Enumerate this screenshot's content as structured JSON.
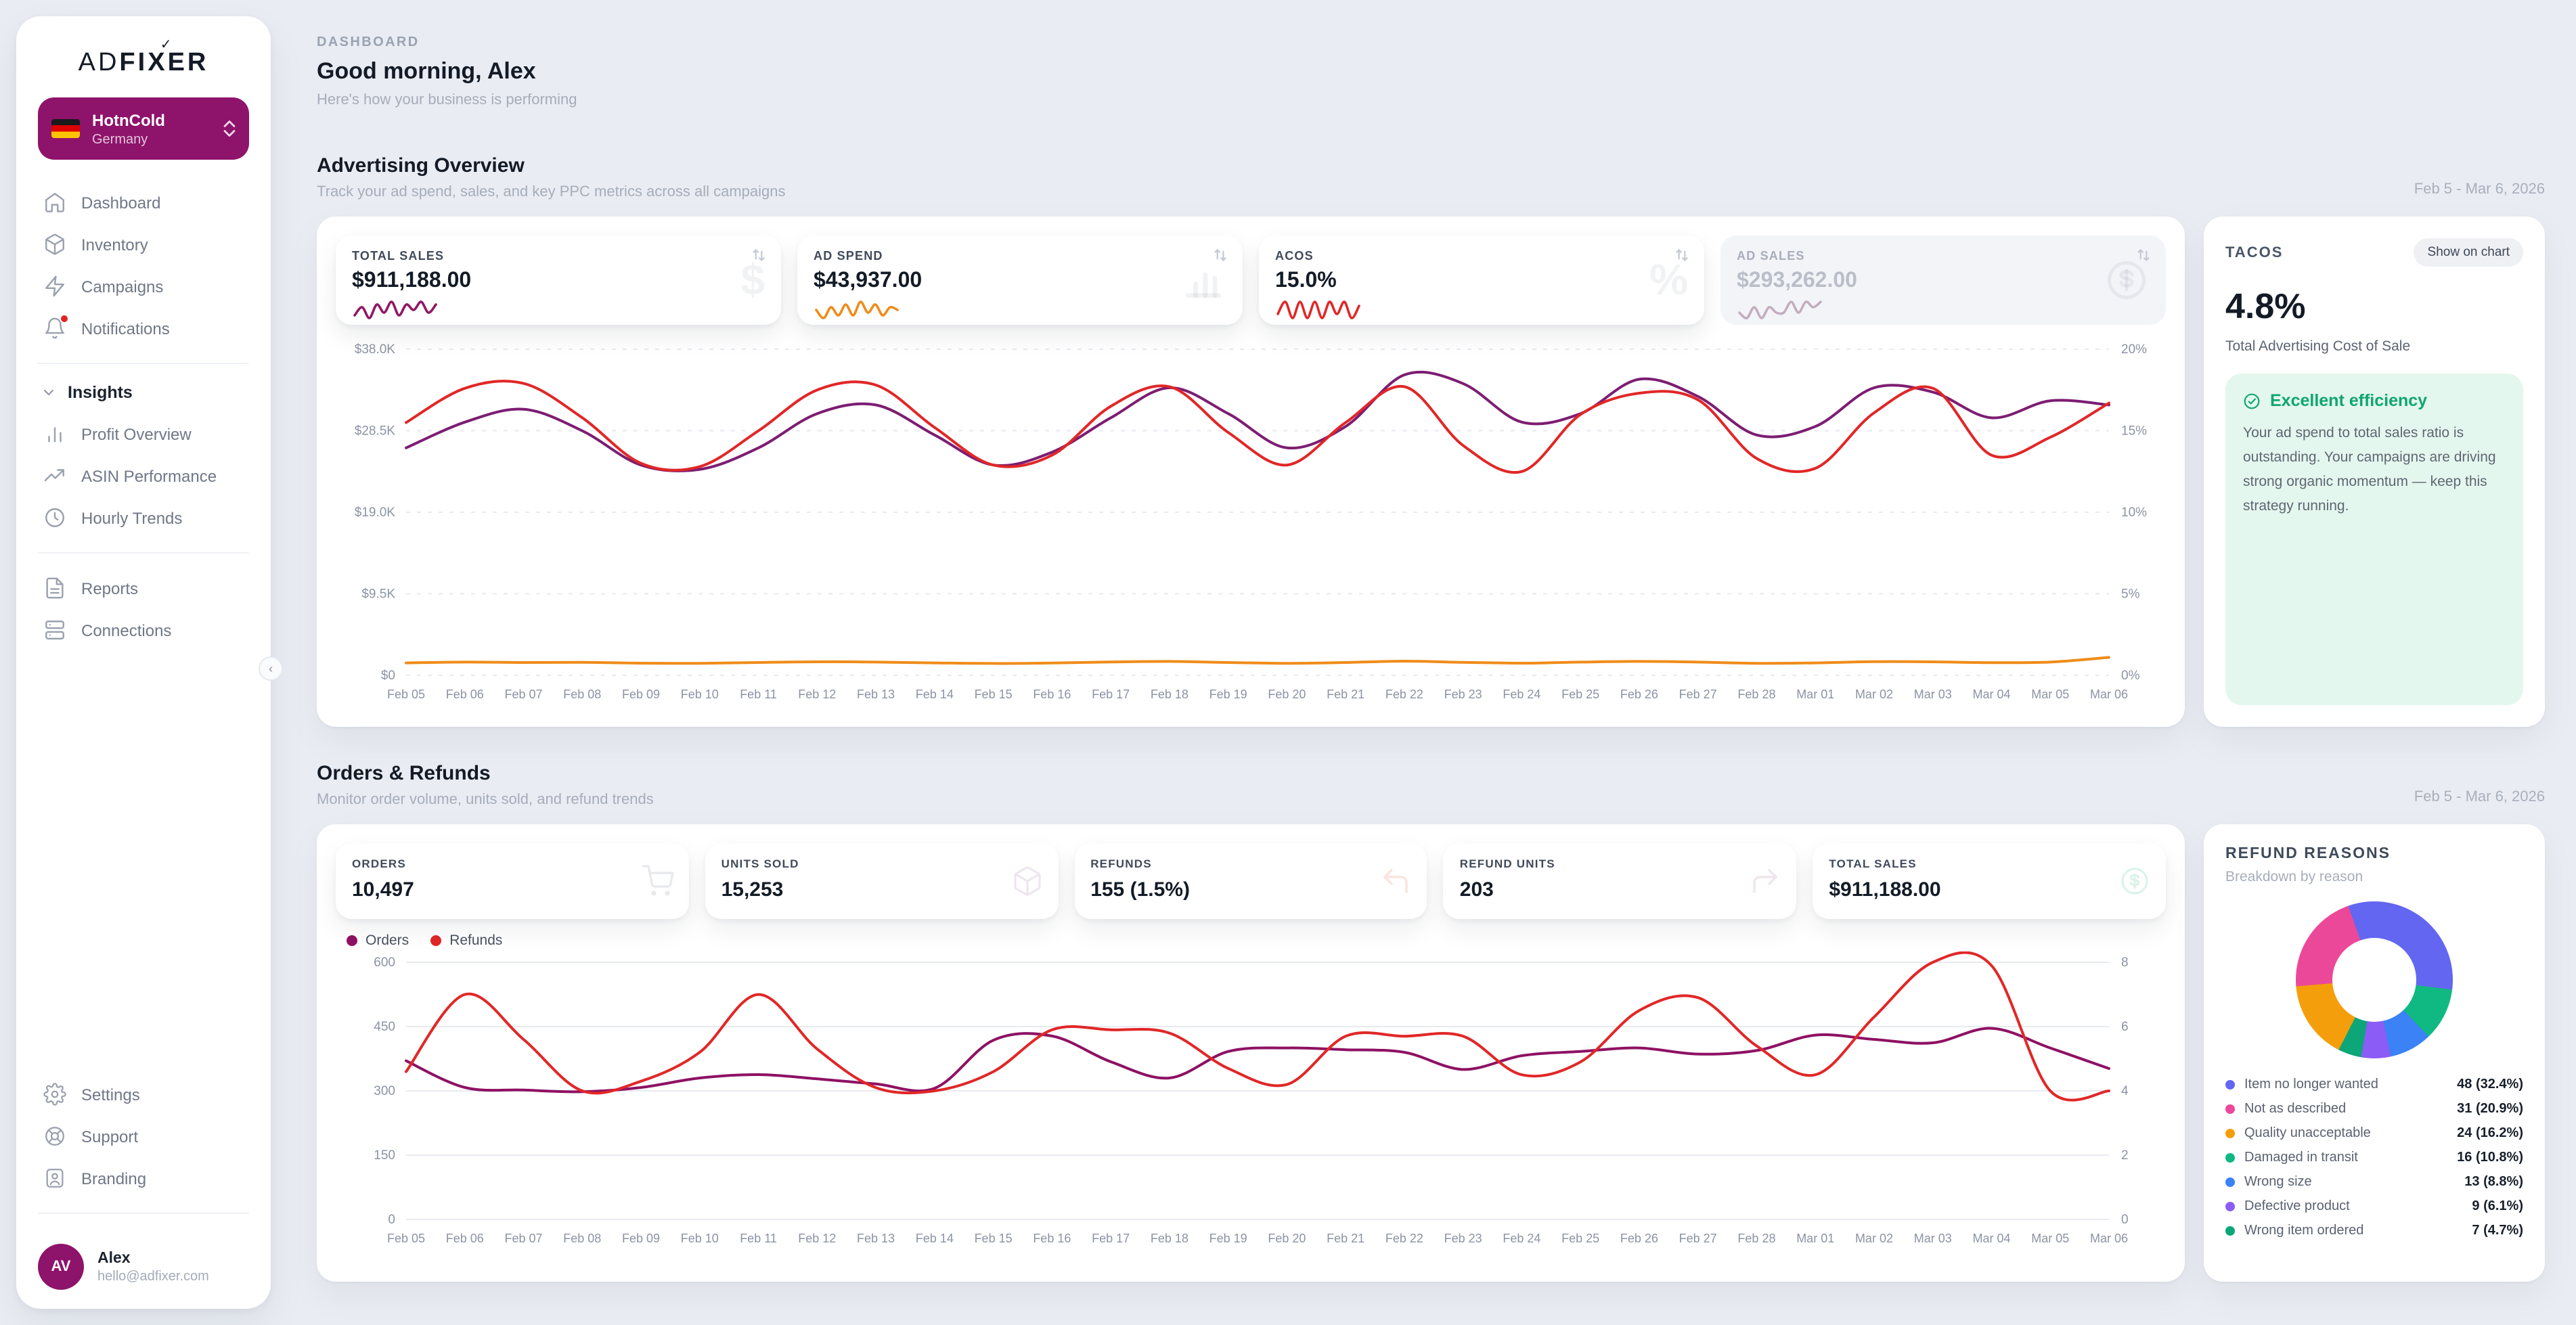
{
  "brand": {
    "ad": "AD",
    "fi": "FI",
    "x": "X",
    "er": "ER"
  },
  "sidebar": {
    "account": {
      "name": "HotnCold",
      "region": "Germany"
    },
    "nav": [
      {
        "label": "Dashboard"
      },
      {
        "label": "Inventory"
      },
      {
        "label": "Campaigns"
      },
      {
        "label": "Notifications"
      }
    ],
    "insights": {
      "header": "Insights",
      "items": [
        {
          "label": "Profit Overview"
        },
        {
          "label": "ASIN Performance"
        },
        {
          "label": "Hourly Trends"
        }
      ]
    },
    "secondary": [
      {
        "label": "Reports"
      },
      {
        "label": "Connections"
      }
    ],
    "footer": [
      {
        "label": "Settings"
      },
      {
        "label": "Support"
      },
      {
        "label": "Branding"
      }
    ],
    "user": {
      "initials": "AV",
      "name": "Alex",
      "email": "hello@adfixer.com"
    }
  },
  "header": {
    "breadcrumb": "DASHBOARD",
    "title": "Good morning, Alex",
    "subtitle": "Here's how your business is performing"
  },
  "advertising": {
    "title": "Advertising Overview",
    "subtitle": "Track your ad spend, sales, and key PPC metrics across all campaigns",
    "date_range": "Feb 5 - Mar 6, 2026",
    "cards": [
      {
        "label": "TOTAL SALES",
        "value": "$911,188.00",
        "color": "#8e1966",
        "active": true,
        "spark": [
          3,
          6,
          2,
          7,
          4,
          8,
          3,
          7,
          5,
          8,
          4,
          7
        ]
      },
      {
        "label": "AD SPEND",
        "value": "$43,937.00",
        "color": "#ef8c1a",
        "active": true,
        "spark": [
          5,
          2,
          6,
          3,
          7,
          3,
          8,
          4,
          7,
          3,
          6,
          5
        ]
      },
      {
        "label": "ACOS",
        "value": "15.0%",
        "color": "#e12727",
        "active": true,
        "spark": [
          4,
          7,
          3,
          7,
          3,
          7,
          3,
          7,
          4,
          7,
          3,
          6
        ]
      },
      {
        "label": "AD SALES",
        "value": "$293,262.00",
        "color": "#c2aebf",
        "active": false,
        "spark": [
          4,
          3,
          5,
          3,
          5,
          4,
          4,
          6,
          4,
          6,
          5,
          6
        ]
      }
    ],
    "tacos": {
      "label": "TACOS",
      "button": "Show on chart",
      "value": "4.8%",
      "description": "Total Advertising Cost of Sale",
      "insight_title": "Excellent efficiency",
      "insight_body": "Your ad spend to total sales ratio is outstanding. Your campaigns are driving strong organic momentum — keep this strategy running."
    }
  },
  "orders": {
    "title": "Orders & Refunds",
    "subtitle": "Monitor order volume, units sold, and refund trends",
    "date_range": "Feb 5 - Mar 6, 2026",
    "cards": [
      {
        "label": "ORDERS",
        "value": "10,497"
      },
      {
        "label": "UNITS SOLD",
        "value": "15,253"
      },
      {
        "label": "REFUNDS",
        "value": "155 (1.5%)"
      },
      {
        "label": "REFUND UNITS",
        "value": "203"
      },
      {
        "label": "TOTAL SALES",
        "value": "$911,188.00"
      }
    ],
    "legend": [
      {
        "label": "Orders",
        "color": "#8e1163"
      },
      {
        "label": "Refunds",
        "color": "#e12727"
      }
    ]
  },
  "refund_reasons": {
    "title": "REFUND REASONS",
    "subtitle": "Breakdown by reason"
  },
  "chart_data": [
    {
      "type": "line",
      "title": "Advertising performance by day",
      "grid": "dashed",
      "x_labels": [
        "Feb 05",
        "Feb 06",
        "Feb 07",
        "Feb 08",
        "Feb 09",
        "Feb 10",
        "Feb 11",
        "Feb 12",
        "Feb 13",
        "Feb 14",
        "Feb 15",
        "Feb 16",
        "Feb 17",
        "Feb 18",
        "Feb 19",
        "Feb 20",
        "Feb 21",
        "Feb 22",
        "Feb 23",
        "Feb 24",
        "Feb 25",
        "Feb 26",
        "Feb 27",
        "Feb 28",
        "Mar 01",
        "Mar 02",
        "Mar 03",
        "Mar 04",
        "Mar 05",
        "Mar 06"
      ],
      "left": {
        "min": 0,
        "max": 38,
        "ticks": [
          {
            "v": 38,
            "label": "$38.0K"
          },
          {
            "v": 28.5,
            "label": "$28.5K"
          },
          {
            "v": 19,
            "label": "$19.0K"
          },
          {
            "v": 9.5,
            "label": "$9.5K"
          },
          {
            "v": 0,
            "label": "$0"
          }
        ]
      },
      "right": {
        "min": 0,
        "max": 20,
        "ticks": [
          {
            "v": 20,
            "label": "20%"
          },
          {
            "v": 15,
            "label": "15%"
          },
          {
            "v": 10,
            "label": "10%"
          },
          {
            "v": 5,
            "label": "5%"
          },
          {
            "v": 0,
            "label": "0%"
          }
        ]
      },
      "series": [
        {
          "name": "Total Sales ($K)",
          "axis": "left",
          "color": "#7d1d72",
          "width": 2,
          "values": [
            26.5,
            29.5,
            31.0,
            28.5,
            24.5,
            24.0,
            26.5,
            30.5,
            31.5,
            28.0,
            24.5,
            26.0,
            30.0,
            33.5,
            30.5,
            26.5,
            29.0,
            35.0,
            34.0,
            29.5,
            30.5,
            34.5,
            32.5,
            28.0,
            29.0,
            33.5,
            33.0,
            30.0,
            32.0,
            31.5
          ]
        },
        {
          "name": "Ad Spend ($K)",
          "axis": "left",
          "color": "#ef8c1a",
          "width": 2,
          "values": [
            1.45,
            1.55,
            1.5,
            1.52,
            1.42,
            1.4,
            1.5,
            1.58,
            1.55,
            1.45,
            1.38,
            1.44,
            1.56,
            1.62,
            1.5,
            1.4,
            1.5,
            1.65,
            1.52,
            1.42,
            1.55,
            1.62,
            1.55,
            1.4,
            1.45,
            1.6,
            1.58,
            1.48,
            1.55,
            2.1
          ]
        },
        {
          "name": "ACOS (%)",
          "axis": "right",
          "color": "#e12727",
          "width": 2,
          "values": [
            15.5,
            17.6,
            17.9,
            15.8,
            13.0,
            12.8,
            15.0,
            17.5,
            17.8,
            15.2,
            12.9,
            13.5,
            16.5,
            17.7,
            14.9,
            12.9,
            15.5,
            17.7,
            14.1,
            12.5,
            16.0,
            17.3,
            16.9,
            13.3,
            12.7,
            16.1,
            17.6,
            13.5,
            14.6,
            16.7
          ]
        }
      ]
    },
    {
      "type": "line",
      "title": "Orders vs Refunds by day",
      "grid": "solid",
      "x_labels": [
        "Feb 05",
        "Feb 06",
        "Feb 07",
        "Feb 08",
        "Feb 09",
        "Feb 10",
        "Feb 11",
        "Feb 12",
        "Feb 13",
        "Feb 14",
        "Feb 15",
        "Feb 16",
        "Feb 17",
        "Feb 18",
        "Feb 19",
        "Feb 20",
        "Feb 21",
        "Feb 22",
        "Feb 23",
        "Feb 24",
        "Feb 25",
        "Feb 26",
        "Feb 27",
        "Feb 28",
        "Mar 01",
        "Mar 02",
        "Mar 03",
        "Mar 04",
        "Mar 05",
        "Mar 06"
      ],
      "left": {
        "min": 0,
        "max": 600,
        "ticks": [
          {
            "v": 600,
            "label": "600"
          },
          {
            "v": 450,
            "label": "450"
          },
          {
            "v": 300,
            "label": "300"
          },
          {
            "v": 150,
            "label": "150"
          },
          {
            "v": 0,
            "label": "0"
          }
        ]
      },
      "right": {
        "min": 0,
        "max": 8,
        "ticks": [
          {
            "v": 8,
            "label": "8"
          },
          {
            "v": 6,
            "label": "6"
          },
          {
            "v": 4,
            "label": "4"
          },
          {
            "v": 2,
            "label": "2"
          },
          {
            "v": 0,
            "label": "0"
          }
        ]
      },
      "series": [
        {
          "name": "Orders",
          "axis": "left",
          "color": "#8e1163",
          "width": 2,
          "values": [
            370,
            308,
            302,
            298,
            308,
            330,
            338,
            328,
            316,
            306,
            418,
            428,
            368,
            330,
            392,
            400,
            396,
            390,
            350,
            382,
            392,
            400,
            386,
            394,
            430,
            420,
            412,
            446,
            400,
            352
          ]
        },
        {
          "name": "Refunds",
          "axis": "right",
          "color": "#e12727",
          "width": 2,
          "values": [
            4.6,
            7.0,
            5.6,
            4.0,
            4.3,
            5.2,
            7.0,
            5.3,
            4.1,
            4.0,
            4.6,
            5.9,
            5.9,
            5.8,
            4.7,
            4.2,
            5.7,
            5.7,
            5.7,
            4.5,
            4.9,
            6.5,
            6.9,
            5.4,
            4.5,
            6.3,
            8.0,
            7.9,
            4.0,
            4.0
          ]
        }
      ]
    },
    {
      "type": "donut",
      "title": "Refund reasons breakdown",
      "start": 207,
      "order": [
        2,
        1,
        0,
        3,
        4,
        5,
        6
      ],
      "slices": [
        {
          "label": "Item no longer wanted",
          "count": 48,
          "pct": 32.4,
          "count_text": "48 (32.4%)",
          "color": "#6366f1"
        },
        {
          "label": "Not as described",
          "count": 31,
          "pct": 20.9,
          "count_text": "31 (20.9%)",
          "color": "#ec4899"
        },
        {
          "label": "Quality unacceptable",
          "count": 24,
          "pct": 16.2,
          "count_text": "24 (16.2%)",
          "color": "#f59e0b"
        },
        {
          "label": "Damaged in transit",
          "count": 16,
          "pct": 10.8,
          "count_text": "16 (10.8%)",
          "color": "#10b981"
        },
        {
          "label": "Wrong size",
          "count": 13,
          "pct": 8.8,
          "count_text": "13 (8.8%)",
          "color": "#3b82f6"
        },
        {
          "label": "Defective product",
          "count": 9,
          "pct": 6.1,
          "count_text": "9 (6.1%)",
          "color": "#8b5cf6"
        },
        {
          "label": "Wrong item ordered",
          "count": 7,
          "pct": 4.7,
          "count_text": "7 (4.7%)",
          "color": "#0ca678"
        }
      ]
    }
  ]
}
